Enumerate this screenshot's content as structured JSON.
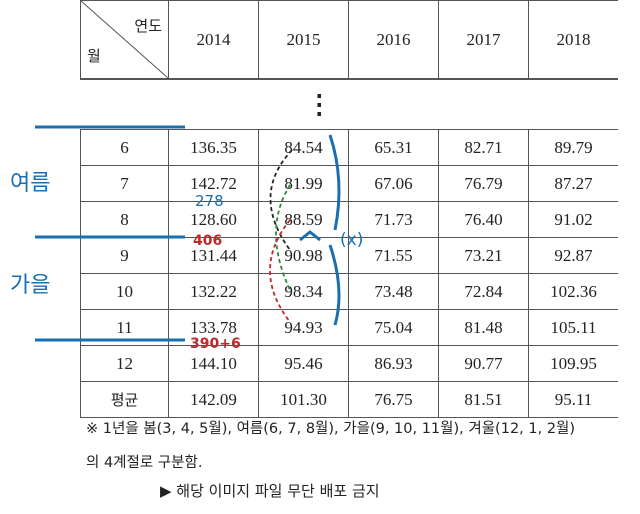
{
  "table": {
    "corner_col": "연도",
    "corner_row": "월",
    "years": [
      "2014",
      "2015",
      "2016",
      "2017",
      "2018"
    ],
    "ellipsis": "⋮",
    "rows": [
      [
        "6",
        "136.35",
        "84.54",
        "65.31",
        "82.71",
        "89.79"
      ],
      [
        "7",
        "142.72",
        "81.99",
        "67.06",
        "76.79",
        "87.27"
      ],
      [
        "8",
        "128.60",
        "88.59",
        "71.73",
        "76.40",
        "91.02"
      ],
      [
        "9",
        "131.44",
        "90.98",
        "71.55",
        "73.21",
        "92.87"
      ],
      [
        "10",
        "132.22",
        "98.34",
        "73.48",
        "72.84",
        "102.36"
      ],
      [
        "11",
        "133.78",
        "94.93",
        "75.04",
        "81.48",
        "105.11"
      ],
      [
        "12",
        "144.10",
        "95.46",
        "86.93",
        "90.77",
        "109.95"
      ],
      [
        "평균",
        "142.09",
        "101.30",
        "76.75",
        "81.51",
        "95.11"
      ]
    ]
  },
  "note": "※ 1년을 봄(3, 4, 5월), 여름(6, 7, 8월), 가을(9, 10, 11월), 겨울(12, 1, 2월)의 4계절로 구분함.",
  "footer": "▶ 해당 이미지 파일 무단 배포 금지",
  "annotations": {
    "summer": "여름",
    "autumn": "가을",
    "n1": "278",
    "n2": "406",
    "n3": "390+6",
    "x": "(x)"
  }
}
